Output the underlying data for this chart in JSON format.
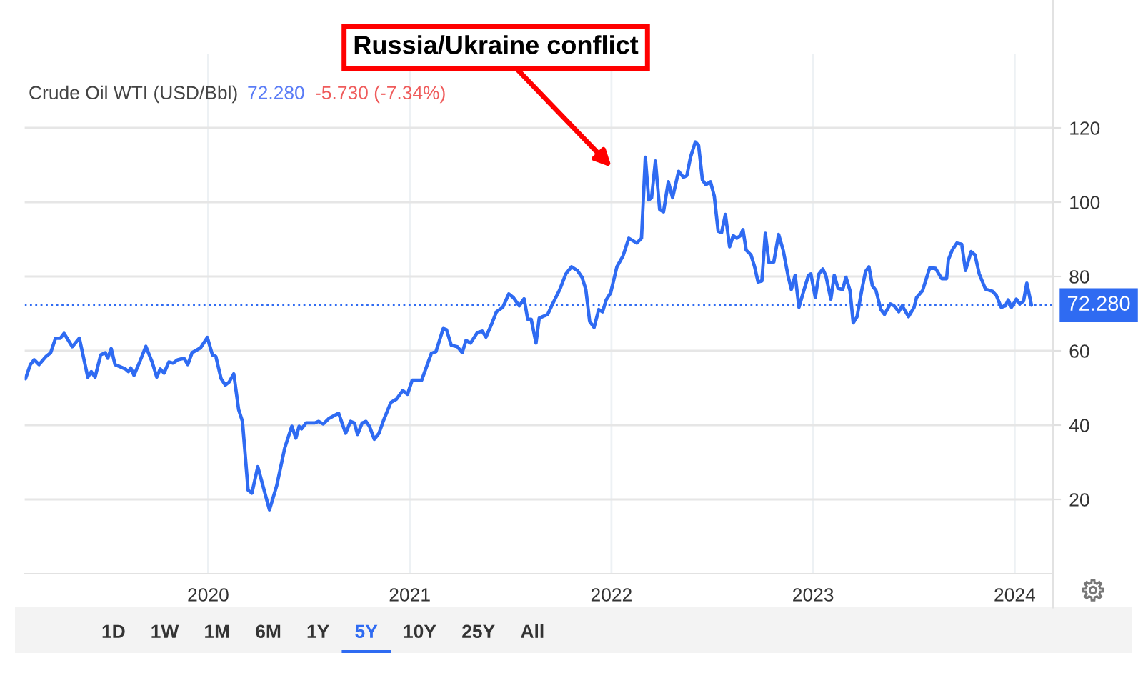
{
  "chart_data": {
    "type": "line",
    "title": "Crude Oil WTI (USD/Bbl)",
    "subtitle": "72.280",
    "annotations": [
      "Russia/Ukraine conflict",
      "-5.730 (-7.34%)",
      "1D",
      "1W",
      "1M",
      "6M",
      "1Y",
      "5Y",
      "10Y",
      "25Y",
      "All"
    ],
    "x": [
      2019.094,
      2019.118,
      2019.137,
      2019.161,
      2019.196,
      2019.219,
      2019.243,
      2019.267,
      2019.285,
      2019.326,
      2019.361,
      2019.403,
      2019.42,
      2019.439,
      2019.467,
      2019.49,
      2019.502,
      2019.519,
      2019.538,
      2019.59,
      2019.604,
      2019.616,
      2019.632,
      2019.66,
      2019.691,
      2019.722,
      2019.745,
      2019.762,
      2019.781,
      2019.805,
      2019.826,
      2019.849,
      2019.88,
      2019.899,
      2019.92,
      2019.962,
      2019.996,
      2020.021,
      2020.038,
      2020.064,
      2020.085,
      2020.104,
      2020.127,
      2020.151,
      2020.17,
      2020.198,
      2020.217,
      2020.246,
      2020.304,
      2020.34,
      2020.38,
      2020.415,
      2020.435,
      2020.451,
      2020.463,
      2020.486,
      2020.529,
      2020.548,
      2020.571,
      2020.599,
      2020.647,
      2020.682,
      2020.706,
      2020.725,
      2020.741,
      2020.764,
      2020.783,
      2020.8,
      2020.824,
      2020.847,
      2020.87,
      2020.906,
      2020.934,
      2020.965,
      2020.989,
      2021.012,
      2021.059,
      2021.083,
      2021.107,
      2021.13,
      2021.166,
      2021.182,
      2021.206,
      2021.236,
      2021.26,
      2021.279,
      2021.302,
      2021.335,
      2021.359,
      2021.378,
      2021.406,
      2021.43,
      2021.461,
      2021.491,
      2021.514,
      2021.543,
      2021.567,
      2021.585,
      2021.602,
      2021.626,
      2021.642,
      2021.684,
      2021.708,
      2021.744,
      2021.774,
      2021.802,
      2021.831,
      2021.854,
      2021.873,
      2021.892,
      2021.914,
      2021.937,
      2021.956,
      2021.974,
      2021.996,
      2022.027,
      2022.057,
      2022.086,
      2022.126,
      2022.149,
      2022.168,
      2022.185,
      2022.199,
      2022.218,
      2022.239,
      2022.258,
      2022.282,
      2022.303,
      2022.333,
      2022.357,
      2022.374,
      2022.392,
      2022.416,
      2022.432,
      2022.451,
      2022.468,
      2022.491,
      2022.51,
      2022.529,
      2022.546,
      2022.565,
      2022.586,
      2022.604,
      2022.621,
      2022.64,
      2022.652,
      2022.668,
      2022.692,
      2022.71,
      2022.727,
      2022.746,
      2022.763,
      2022.781,
      2022.805,
      2022.829,
      2022.852,
      2022.876,
      2022.892,
      2022.911,
      2022.93,
      2022.954,
      2022.977,
      2022.989,
      2023.011,
      2023.029,
      2023.048,
      2023.064,
      2023.088,
      2023.105,
      2023.124,
      2023.147,
      2023.163,
      2023.183,
      2023.199,
      2023.218,
      2023.241,
      2023.26,
      2023.277,
      2023.294,
      2023.312,
      2023.336,
      2023.354,
      2023.383,
      2023.402,
      2023.425,
      2023.442,
      2023.473,
      2023.501,
      2023.513,
      2023.543,
      2023.579,
      2023.607,
      2023.638,
      2023.662,
      2023.671,
      2023.69,
      2023.713,
      2023.737,
      2023.756,
      2023.784,
      2023.803,
      2023.824,
      2023.855,
      2023.89,
      2023.909,
      2023.933,
      2023.954,
      2023.968,
      2023.984,
      2024.008,
      2024.025,
      2024.044,
      2024.06,
      2024.083
    ],
    "series": [
      {
        "color": "#2f6bf2",
        "values": [
          52.5,
          56.3,
          57.6,
          56.3,
          58.5,
          59.5,
          63.4,
          63.4,
          64.7,
          61.1,
          63.4,
          52.9,
          54.4,
          52.9,
          58.9,
          59.5,
          58.0,
          60.6,
          56.3,
          55.1,
          54.4,
          55.4,
          53.4,
          57.0,
          61.2,
          57.0,
          52.9,
          55.1,
          54.0,
          57.0,
          56.7,
          57.6,
          58.0,
          56.3,
          59.5,
          60.8,
          63.6,
          58.9,
          58.5,
          52.5,
          50.8,
          51.6,
          53.8,
          44.2,
          41.0,
          22.5,
          21.7,
          28.8,
          17.2,
          23.7,
          33.9,
          39.7,
          36.5,
          39.7,
          39.0,
          40.6,
          40.6,
          41.0,
          40.3,
          41.8,
          43.2,
          37.8,
          41.0,
          40.6,
          37.5,
          40.6,
          41.0,
          39.7,
          36.2,
          37.8,
          41.3,
          46.1,
          47.0,
          49.3,
          48.3,
          52.1,
          52.1,
          55.7,
          59.3,
          59.8,
          66.0,
          65.7,
          61.5,
          61.1,
          59.5,
          62.8,
          62.1,
          64.9,
          65.3,
          63.7,
          67.2,
          70.5,
          71.7,
          75.3,
          74.3,
          72.1,
          74.0,
          68.5,
          68.5,
          62.1,
          68.8,
          69.8,
          72.6,
          76.5,
          80.7,
          82.6,
          81.6,
          79.8,
          76.5,
          67.9,
          66.3,
          71.1,
          70.5,
          73.7,
          75.6,
          82.6,
          85.5,
          90.3,
          89.0,
          90.3,
          112.1,
          100.6,
          101.2,
          111.1,
          98.0,
          97.4,
          105.5,
          101.2,
          108.3,
          106.7,
          107.2,
          112.1,
          116.2,
          115.3,
          106.0,
          104.7,
          105.5,
          101.6,
          92.2,
          91.8,
          96.7,
          88.0,
          91.0,
          90.3,
          91.0,
          92.6,
          87.1,
          85.8,
          82.6,
          78.5,
          78.8,
          91.6,
          83.7,
          83.9,
          91.3,
          87.0,
          80.1,
          76.5,
          80.3,
          71.7,
          76.2,
          80.3,
          80.7,
          74.3,
          80.7,
          82.0,
          80.1,
          73.9,
          80.3,
          76.8,
          76.5,
          79.8,
          76.2,
          67.5,
          69.2,
          76.2,
          81.3,
          82.6,
          77.5,
          76.2,
          71.1,
          69.8,
          72.6,
          72.1,
          70.5,
          72.1,
          69.2,
          71.7,
          74.3,
          76.2,
          82.4,
          82.2,
          79.4,
          79.4,
          84.5,
          87.1,
          89.0,
          88.7,
          81.6,
          86.7,
          85.8,
          80.7,
          76.6,
          76.0,
          74.9,
          71.7,
          72.1,
          73.7,
          71.7,
          73.9,
          72.6,
          73.4,
          78.2,
          72.3
        ]
      }
    ],
    "xlim": [
      2019.09,
      2024.19
    ],
    "xticks": [
      2020,
      2021,
      2022,
      2023,
      2024
    ],
    "ylim": [
      0,
      140
    ],
    "yticks": [
      20,
      40,
      60,
      80,
      100,
      120
    ],
    "ref_lines": [
      {
        "axis": "y",
        "value": 72.28,
        "label": "72.280",
        "color": "#2f6bf2",
        "line_style": "dotted"
      }
    ],
    "grid": true,
    "line_style": "solid"
  }
}
